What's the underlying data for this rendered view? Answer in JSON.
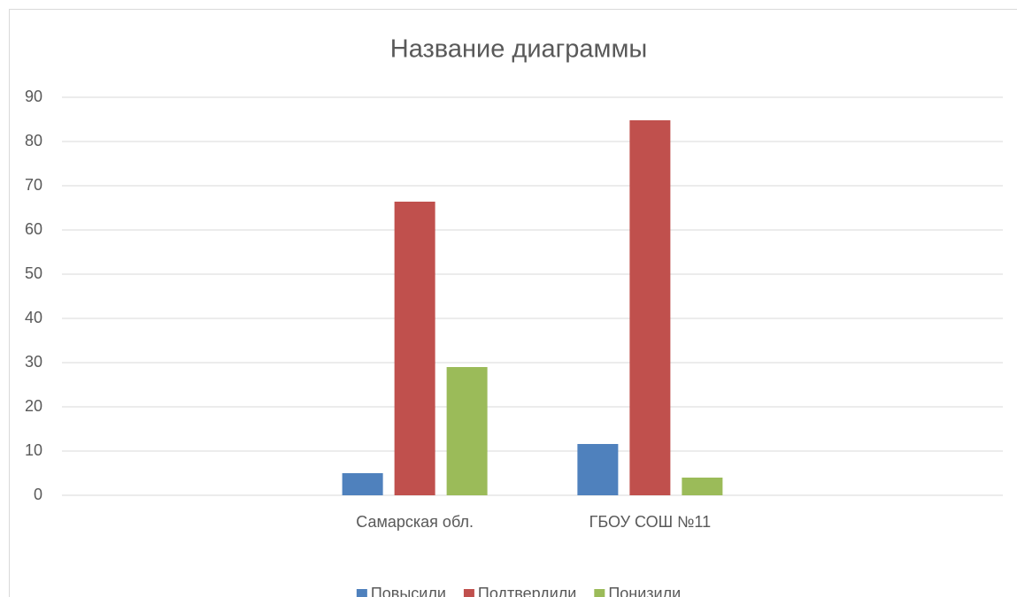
{
  "chart_data": {
    "type": "bar",
    "title": "Название диаграммы",
    "categories": [
      null,
      "Самарская обл.",
      "ГБОУ СОШ №11",
      null
    ],
    "series": [
      {
        "name": "Повысили",
        "color": "#4f81bd",
        "values": [
          null,
          5,
          11.6,
          null
        ]
      },
      {
        "name": "Подтвердили",
        "color": "#c0504d",
        "values": [
          null,
          66.4,
          84.8,
          null
        ]
      },
      {
        "name": "Понизили",
        "color": "#9bbb59",
        "values": [
          null,
          29,
          4,
          null
        ]
      }
    ],
    "ylim": [
      0,
      90
    ],
    "yticks": [
      0,
      10,
      20,
      30,
      40,
      50,
      60,
      70,
      80,
      90
    ],
    "grid": true,
    "legend": "bottom"
  }
}
